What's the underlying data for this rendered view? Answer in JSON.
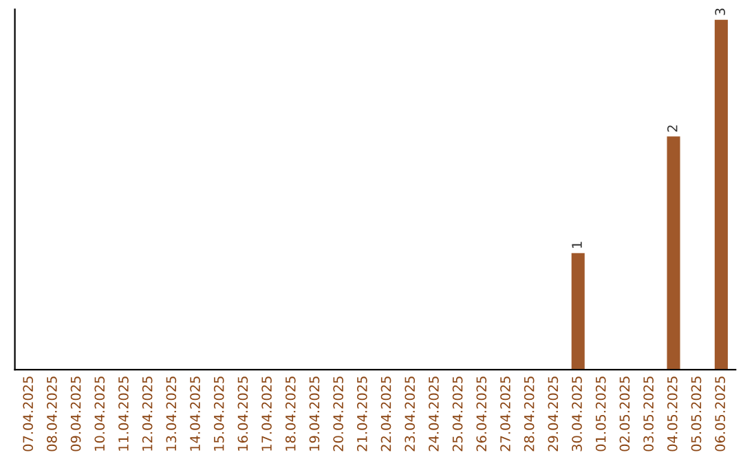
{
  "chart_data": {
    "type": "bar",
    "categories": [
      "07.04.2025",
      "08.04.2025",
      "09.04.2025",
      "10.04.2025",
      "11.04.2025",
      "12.04.2025",
      "13.04.2025",
      "14.04.2025",
      "15.04.2025",
      "16.04.2025",
      "17.04.2025",
      "18.04.2025",
      "19.04.2025",
      "20.04.2025",
      "21.04.2025",
      "22.04.2025",
      "23.04.2025",
      "24.04.2025",
      "25.04.2025",
      "26.04.2025",
      "27.04.2025",
      "28.04.2025",
      "29.04.2025",
      "30.04.2025",
      "01.05.2025",
      "02.05.2025",
      "03.05.2025",
      "04.05.2025",
      "05.05.2025",
      "06.05.2025"
    ],
    "values": [
      null,
      null,
      null,
      null,
      null,
      null,
      null,
      null,
      null,
      null,
      null,
      null,
      null,
      null,
      null,
      null,
      null,
      null,
      null,
      null,
      null,
      null,
      null,
      1,
      null,
      null,
      null,
      2,
      null,
      3
    ],
    "data_labels": true,
    "color": "#a0582a",
    "grid": false,
    "legend": false
  }
}
